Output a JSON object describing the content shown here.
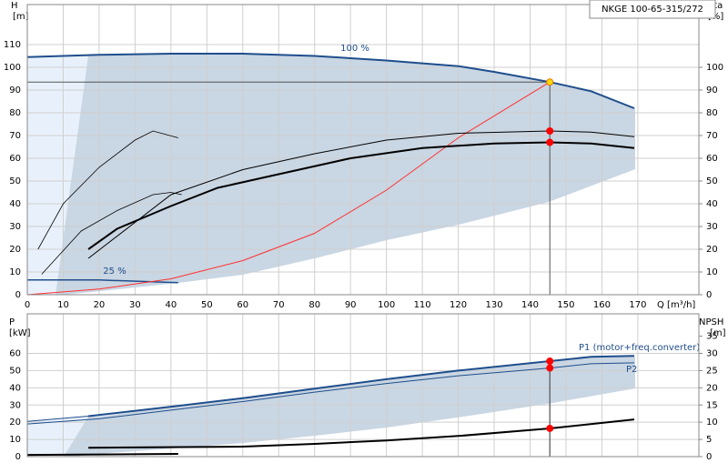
{
  "chart_data": [
    {
      "type": "line",
      "title": "NKGE 100-65-315/272",
      "y_label": "H",
      "y_unit": "[m]",
      "y2_label": "eta",
      "y2_unit": "[%]",
      "x_label": "Q [m³/h]",
      "xlim": [
        0,
        187
      ],
      "xticks": [
        0,
        10,
        20,
        30,
        40,
        50,
        60,
        70,
        80,
        90,
        100,
        110,
        120,
        130,
        140,
        150,
        160,
        170
      ],
      "xtick_labels": true,
      "ylim": [
        0,
        127.6
      ],
      "yticks": [
        0,
        10,
        20,
        30,
        40,
        50,
        60,
        70,
        80,
        90,
        100,
        110
      ],
      "y2lim": [
        0,
        127.6
      ],
      "y2ticks": [
        0,
        10,
        20,
        30,
        40,
        50,
        60,
        70,
        80,
        90,
        100
      ],
      "grid": true,
      "series": [
        {
          "name": "100 %",
          "color": "#1f4e8c",
          "width": 2,
          "x": [
            0,
            20,
            40,
            60,
            80,
            100,
            120,
            130,
            145.5,
            157,
            169
          ],
          "values": [
            104.5,
            105.5,
            106,
            106,
            105,
            103,
            100.5,
            98,
            93.5,
            89.5,
            82
          ]
        },
        {
          "name": "25 %",
          "color": "#1f4e8c",
          "width": 1.5,
          "x": [
            0,
            20,
            42
          ],
          "values": [
            6.5,
            6.5,
            5.3
          ]
        },
        {
          "color": "#ff3030",
          "width": 1,
          "x": [
            0,
            20,
            40,
            60,
            80,
            100,
            120,
            145.5
          ],
          "values": [
            0,
            2.5,
            7,
            15,
            27,
            46,
            69,
            93.5
          ]
        },
        {
          "color": "#000000",
          "width": 2,
          "axis": "y2",
          "x": [
            17,
            25,
            40,
            53,
            70,
            90,
            110,
            130,
            145.5,
            157,
            169
          ],
          "values": [
            20,
            29,
            39,
            47,
            53,
            60,
            64.5,
            66.5,
            67,
            66.5,
            64.5
          ]
        },
        {
          "color": "#000000",
          "width": 1,
          "axis": "y2",
          "x": [
            17,
            40,
            60,
            80,
            100,
            120,
            145.5,
            157,
            169
          ],
          "values": [
            16,
            44,
            55,
            62,
            68,
            71,
            72,
            71.5,
            69.5
          ]
        },
        {
          "color": "#000000",
          "width": 0.8,
          "axis": "y2",
          "x": [
            3,
            10,
            20,
            30,
            35,
            42
          ],
          "values": [
            20,
            40,
            56,
            68,
            72,
            69
          ]
        },
        {
          "color": "#000000",
          "width": 0.8,
          "axis": "y2",
          "x": [
            4,
            15,
            25,
            35,
            40,
            43
          ],
          "values": [
            9,
            28,
            37,
            44,
            45,
            44
          ]
        },
        {
          "color": "#ffd700",
          "marker": true,
          "guide": "both",
          "x": [
            145.5
          ],
          "values": [
            93.5
          ]
        },
        {
          "color": "#ff0000",
          "marker": true,
          "axis": "y2",
          "x": [
            145.5,
            145.5
          ],
          "values": [
            72,
            67
          ]
        }
      ]
    },
    {
      "type": "line",
      "y_label": "P",
      "y_unit": "[kW]",
      "y2_label": "NPSH",
      "y2_unit": "[m]",
      "xlim": [
        0,
        187
      ],
      "xticks": [
        0,
        10,
        20,
        30,
        40,
        50,
        60,
        70,
        80,
        90,
        100,
        110,
        120,
        130,
        140,
        150,
        160,
        170
      ],
      "xtick_labels": false,
      "ylim": [
        0,
        83
      ],
      "yticks": [
        0,
        10,
        20,
        30,
        40,
        50,
        60
      ],
      "y2lim": [
        0,
        41.5
      ],
      "y2ticks": [
        0,
        5,
        10,
        15,
        20,
        25,
        30,
        35
      ],
      "grid": true,
      "series": [
        {
          "name": "P1 (motor+freq.converter)",
          "color": "#1f4e8c",
          "width": 2,
          "x": [
            17,
            40,
            60,
            80,
            100,
            120,
            145.5,
            157,
            169
          ],
          "values": [
            23.5,
            29,
            34,
            39.5,
            45,
            50,
            55.5,
            58,
            58.5
          ]
        },
        {
          "name": "P2",
          "color": "#1f4e8c",
          "width": 1,
          "x": [
            0,
            20,
            40,
            60,
            80,
            100,
            120,
            145.5,
            157,
            169
          ],
          "values": [
            19,
            22,
            27,
            32,
            37.5,
            42.5,
            47,
            51.5,
            54,
            54.5
          ]
        },
        {
          "color": "#1f4e8c",
          "width": 1,
          "x": [
            0,
            17
          ],
          "values": [
            20.5,
            23.5
          ]
        },
        {
          "color": "#000000",
          "width": 2,
          "axis": "y2",
          "x": [
            17,
            60,
            80,
            100,
            120,
            145.5,
            169
          ],
          "values": [
            2.6,
            2.9,
            3.7,
            4.7,
            6,
            8.2,
            10.8
          ]
        },
        {
          "color": "#000000",
          "width": 2,
          "axis": "y2",
          "x": [
            0,
            42
          ],
          "values": [
            0.5,
            0.8
          ]
        },
        {
          "color": "#ff0000",
          "marker": true,
          "guide": "down",
          "x": [
            145.5,
            145.5
          ],
          "values": [
            55.5,
            51.5
          ]
        },
        {
          "color": "#ff0000",
          "marker": true,
          "axis": "y2",
          "x": [
            145.5
          ],
          "values": [
            8.2
          ]
        }
      ]
    }
  ]
}
